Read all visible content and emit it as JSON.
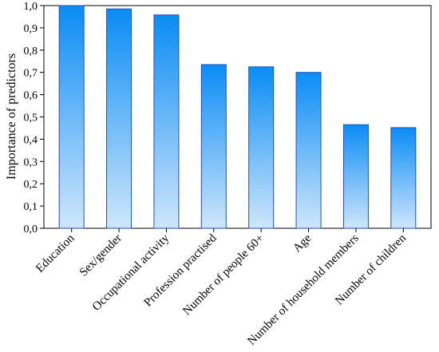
{
  "chart_data": {
    "type": "bar",
    "title": "",
    "xlabel": "",
    "ylabel": "Importance of predictors",
    "ylim": [
      0,
      1.0
    ],
    "yticks": [
      "0,0",
      "0,1",
      "0,2",
      "0,3",
      "0,4",
      "0,5",
      "0,6",
      "0,7",
      "0,8",
      "0,9",
      "1,0"
    ],
    "categories": [
      "Education",
      "Sex/gender",
      "Occupational activity",
      "Profession practised",
      "Number of people 60+",
      "Age",
      "Number of household members",
      "Number of children"
    ],
    "values": [
      1.0,
      0.985,
      0.958,
      0.735,
      0.725,
      0.7,
      0.465,
      0.452
    ],
    "grid": false,
    "legend": "none",
    "colors": {
      "bar_top": "#0a8cf5",
      "bar_bottom": "#cfe6fb",
      "bar_stroke": "#1f4fbf",
      "frame": "#000000"
    }
  }
}
